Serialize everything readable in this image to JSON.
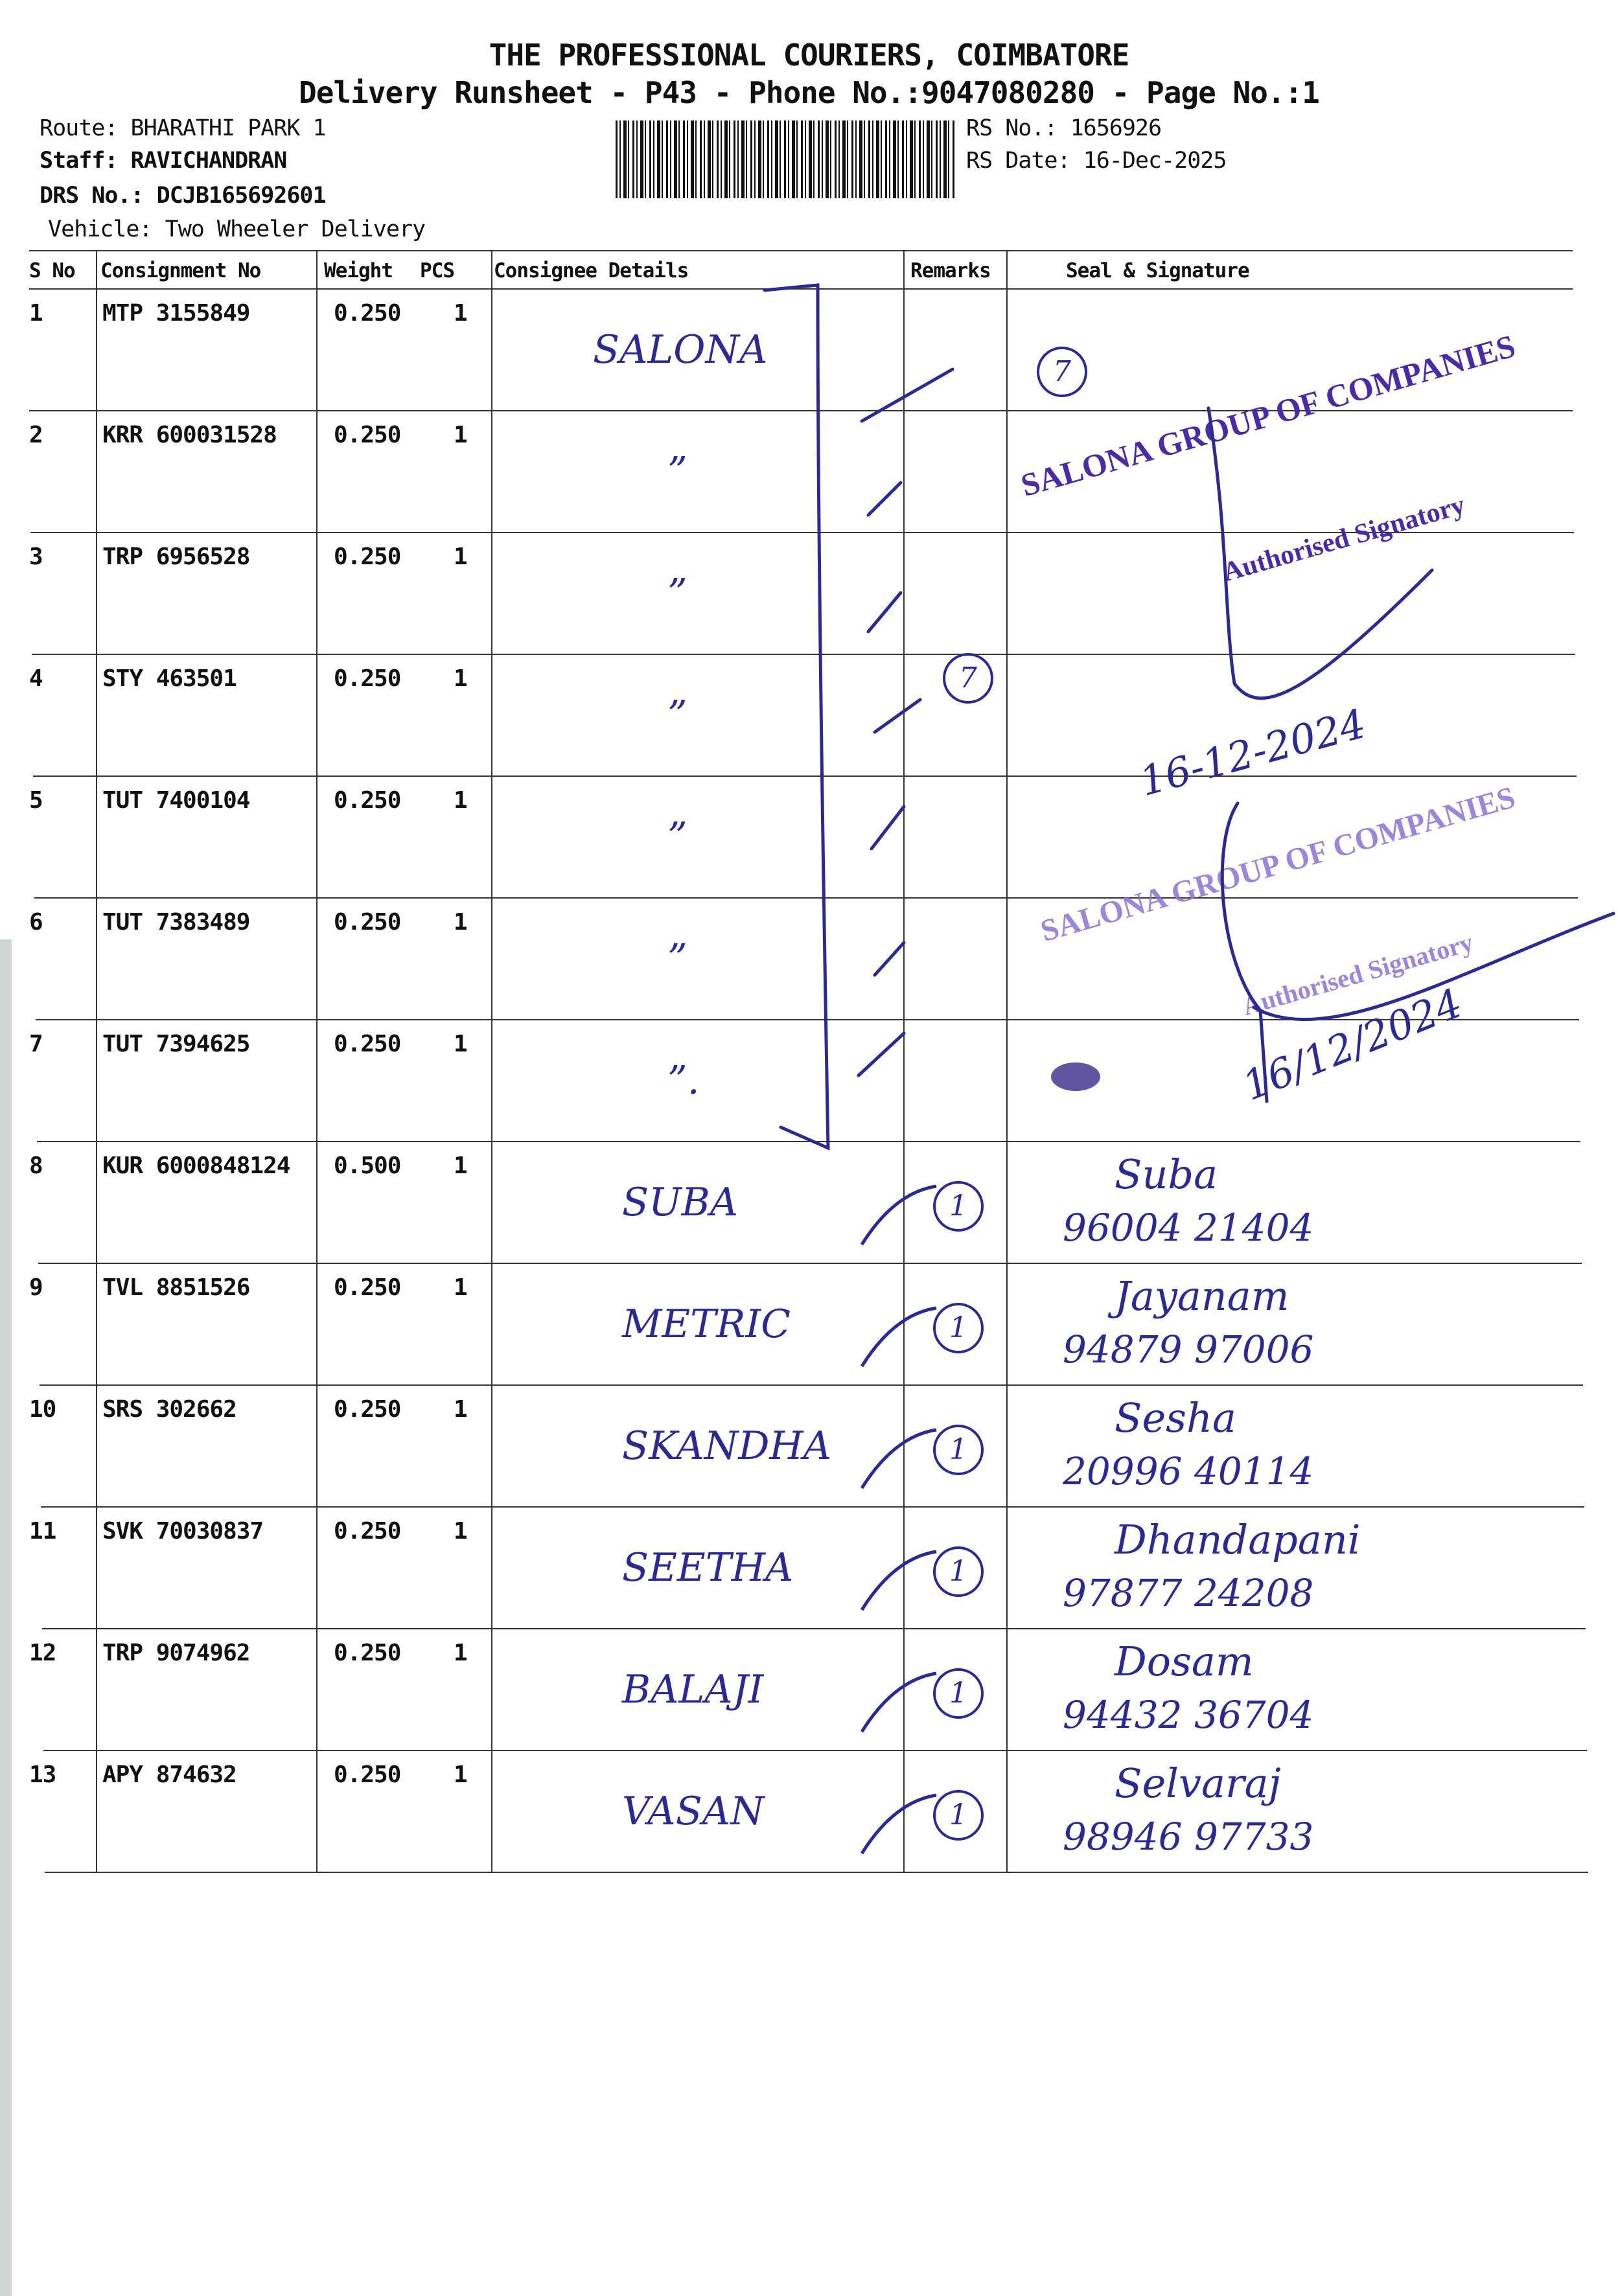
{
  "header": {
    "company": "THE PROFESSIONAL COURIERS, COIMBATORE",
    "subtitle": "Delivery Runsheet - P43 - Phone No.:9047080280 - Page No.:1"
  },
  "meta": {
    "route": "Route: BHARATHI PARK 1",
    "staff": "Staff: RAVICHANDRAN",
    "drs": "DRS No.: DCJB165692601",
    "vehicle": "Vehicle: Two Wheeler Delivery",
    "rs_no": "RS No.: 1656926",
    "rs_date": "RS Date: 16-Dec-2025"
  },
  "columns": {
    "sno": "S No",
    "consignment": "Consignment No",
    "weight": "Weight",
    "pcs": "PCS",
    "consignee": "Consignee Details",
    "remarks": "Remarks",
    "seal": "Seal & Signature"
  },
  "rows": [
    {
      "sno": "1",
      "consignment": "MTP 3155849",
      "weight": "0.250",
      "pcs": "1",
      "consignee": "SALONA",
      "signature": "",
      "phone": ""
    },
    {
      "sno": "2",
      "consignment": "KRR 600031528",
      "weight": "0.250",
      "pcs": "1",
      "consignee": "”",
      "signature": "",
      "phone": ""
    },
    {
      "sno": "3",
      "consignment": "TRP 6956528",
      "weight": "0.250",
      "pcs": "1",
      "consignee": "”",
      "signature": "",
      "phone": ""
    },
    {
      "sno": "4",
      "consignment": "STY 463501",
      "weight": "0.250",
      "pcs": "1",
      "consignee": "”",
      "signature": "",
      "phone": ""
    },
    {
      "sno": "5",
      "consignment": "TUT 7400104",
      "weight": "0.250",
      "pcs": "1",
      "consignee": "”",
      "signature": "",
      "phone": ""
    },
    {
      "sno": "6",
      "consignment": "TUT 7383489",
      "weight": "0.250",
      "pcs": "1",
      "consignee": "”",
      "signature": "",
      "phone": ""
    },
    {
      "sno": "7",
      "consignment": "TUT 7394625",
      "weight": "0.250",
      "pcs": "1",
      "consignee": "”.",
      "signature": "",
      "phone": ""
    },
    {
      "sno": "8",
      "consignment": "KUR 6000848124",
      "weight": "0.500",
      "pcs": "1",
      "consignee": "SUBA",
      "remark_mark": "1",
      "signature": "Suba",
      "phone": "96004 21404"
    },
    {
      "sno": "9",
      "consignment": "TVL 8851526",
      "weight": "0.250",
      "pcs": "1",
      "consignee": "METRIC",
      "remark_mark": "1",
      "signature": "Jayanam",
      "phone": "94879 97006"
    },
    {
      "sno": "10",
      "consignment": "SRS 302662",
      "weight": "0.250",
      "pcs": "1",
      "consignee": "SKANDHA",
      "remark_mark": "1",
      "signature": "Sesha",
      "phone": "20996 40114"
    },
    {
      "sno": "11",
      "consignment": "SVK 70030837",
      "weight": "0.250",
      "pcs": "1",
      "consignee": "SEETHA",
      "remark_mark": "1",
      "signature": "Dhandapani",
      "phone": "97877 24208"
    },
    {
      "sno": "12",
      "consignment": "TRP 9074962",
      "weight": "0.250",
      "pcs": "1",
      "consignee": "BALAJI",
      "remark_mark": "1",
      "signature": "Dosam",
      "phone": "94432 36704"
    },
    {
      "sno": "13",
      "consignment": "APY 874632",
      "weight": "0.250",
      "pcs": "1",
      "consignee": "VASAN",
      "remark_mark": "1",
      "signature": "Selvaraj",
      "phone": "98946 97733"
    }
  ],
  "annotations": {
    "circled_mark_1": "7",
    "circled_mark_2": "7",
    "stamp_company": "SALONA GROUP OF COMPANIES",
    "stamp_role": "Authorised Signatory",
    "date_1": "16-12-2024",
    "date_2": "16/12/2024"
  },
  "colors": {
    "ink": "#2b2a94",
    "stamp": "#4b2aa8",
    "rule": "#333333"
  }
}
